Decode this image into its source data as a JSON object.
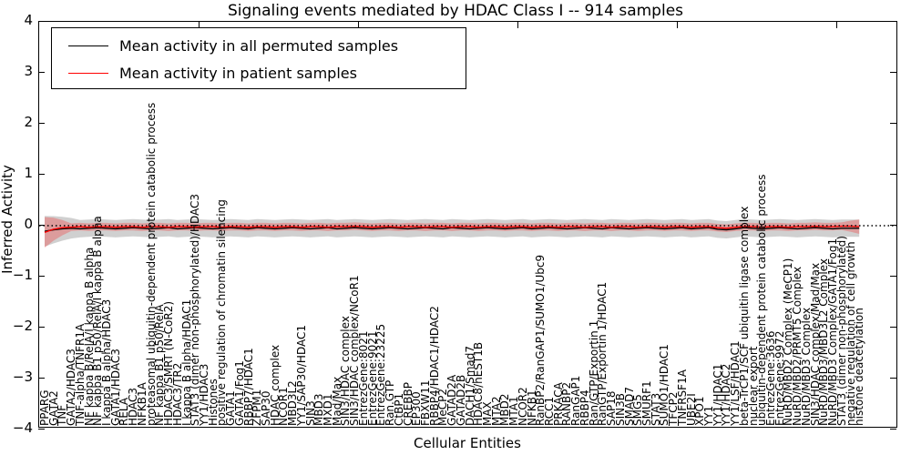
{
  "title": "Signaling events mediated by HDAC Class I -- 914 samples",
  "axes": {
    "ylabel": "Inferred Activity",
    "xlabel": "Cellular Entities",
    "yticks": [
      "4",
      "3",
      "2",
      "1",
      "0",
      "−1",
      "−2",
      "−3",
      "−4"
    ],
    "ytick_values": [
      4,
      3,
      2,
      1,
      0,
      -1,
      -2,
      -3,
      -4
    ],
    "top_tick_x": [
      176,
      351,
      526,
      701,
      876
    ]
  },
  "legend": {
    "items": [
      {
        "label": "Mean activity in all permuted samples",
        "color": "#000000"
      },
      {
        "label": "Mean activity in patient samples",
        "color": "#ff0000"
      }
    ]
  },
  "colors": {
    "permuted_line": "#000000",
    "patient_line": "#ff0000",
    "permuted_band": "rgba(120,120,120,0.35)",
    "patient_band": "rgba(255,0,0,0.25)",
    "zero_line": "#000000"
  },
  "chart_data": {
    "type": "line",
    "title": "Signaling events mediated by HDAC Class I -- 914 samples",
    "xlabel": "Cellular Entities",
    "ylabel": "Inferred Activity",
    "ylim": [
      -4,
      4
    ],
    "grid": false,
    "legend_position": "upper left",
    "categories": [
      "PPARG",
      "GATA2",
      "TNF",
      "GATA2/HDAC3",
      "TNF-alpha/TNFR1A",
      "NF kappa B/RelA/I kappa B alpha",
      "NF kappa B1 p50/RelA/I kappa B alpha",
      "I kappa B alpha/HDAC3",
      "GATA1/HDAC3",
      "RELA",
      "HDAC3",
      "NFKB1A",
      "proteasomal ubiquitin-dependent protein catabolic process",
      "NF kappa B1 p50/RelA",
      "HDAC3/SMRT (N-CoR2)",
      "HDAC3/TR2",
      "I kappa B alpha/HDAC1",
      "STAT3 (dimer non-phosphorylated)/HDAC3",
      "YY1/HDAC3",
      "Histones",
      "positive regulation of chromatin silencing",
      "GATA1",
      "GATA1/Fog1",
      "RBBP7/HDAC1",
      "ZFPM1",
      "SAP30",
      "HDAC complex",
      "NCOR1",
      "MBD3L2",
      "YY1/SAP30/HDAC1",
      "SIN3",
      "MBD3",
      "MXD1",
      "Mad/Max",
      "SIN3/HDAC complex",
      "SIN3/HDAC complex/NCoR1",
      "EntrezGene:8021",
      "EntrezGene:9021",
      "EntrezGene:23225",
      "Ran.GTP",
      "CtBP1",
      "CREBBP",
      "EP300",
      "FBXW11",
      "RBBP4/HDAC1/HDAC2",
      "MeCP2",
      "GATAD2A",
      "GATAD2B",
      "DACH1/Smad7",
      "HDAC8/hEST1B",
      "MAX",
      "MTA2",
      "MBD2",
      "MTA1",
      "NCOR2",
      "NFKB1",
      "RanBP2/RanGAP1/SUMO1/Ubc9",
      "RCC1",
      "PRKACA",
      "RANBP2",
      "RanGAP1",
      "RBBP4",
      "Ran/GTP/Exportin 1",
      "RanGTP/Exportin 1/HDAC1",
      "SAP18",
      "SIN3B",
      "SMAD7",
      "SMG5",
      "SMURF1",
      "STAT3",
      "SUMO1/HDAC1",
      "TFCP2",
      "TNFRSF1A",
      "UBE2I",
      "XPO1",
      "YY1",
      "YY1/HDAC1",
      "YY1/HDAC2",
      "YY1/LSF/HDAC1",
      "beta-TrCP1/SCF ubiquitin ligase complex",
      "nuclear export",
      "ubiquitin-dependent protein catabolic process",
      "EntrezGene:3636",
      "EntrezGene:9972",
      "NuRD/MBD2 Complex (MeCP1)",
      "NuRD/MBD2/PRMT5 Complex",
      "NuRD/MBD3 Complex",
      "SIN3/HDAC complex/Mad/Max",
      "NuRD/MBD3/MBD3L2 Complex",
      "NuRD/MBD3 Complex/GATA1/Fog1",
      "STAT3 (dimer non-phosphorylated)",
      "negative regulation of cell growth",
      "histone deacetylation"
    ],
    "series": [
      {
        "name": "Mean activity in all permuted samples",
        "values": [
          -0.11,
          -0.08,
          -0.06,
          -0.05,
          -0.06,
          -0.05,
          -0.04,
          -0.05,
          -0.06,
          -0.05,
          -0.04,
          -0.05,
          -0.06,
          -0.05,
          -0.04,
          -0.06,
          -0.05,
          -0.04,
          -0.05,
          -0.06,
          -0.05,
          -0.04,
          -0.05,
          -0.06,
          -0.04,
          -0.05,
          -0.06,
          -0.05,
          -0.04,
          -0.05,
          -0.06,
          -0.05,
          -0.04,
          -0.06,
          -0.05,
          -0.04,
          -0.05,
          -0.06,
          -0.05,
          -0.04,
          -0.05,
          -0.06,
          -0.05,
          -0.04,
          -0.05,
          -0.06,
          -0.04,
          -0.05,
          -0.06,
          -0.05,
          -0.04,
          -0.05,
          -0.06,
          -0.05,
          -0.04,
          -0.06,
          -0.05,
          -0.04,
          -0.05,
          -0.06,
          -0.05,
          -0.04,
          -0.05,
          -0.06,
          -0.04,
          -0.05,
          -0.06,
          -0.05,
          -0.04,
          -0.05,
          -0.06,
          -0.05,
          -0.04,
          -0.06,
          -0.05,
          -0.04,
          -0.07,
          -0.08,
          -0.06,
          -0.04,
          -0.05,
          -0.06,
          -0.05,
          -0.04,
          -0.05,
          -0.06,
          -0.05,
          -0.04,
          -0.05,
          -0.06,
          -0.05,
          -0.05,
          -0.05
        ],
        "band_halfwidth": {
          "base": 0.17,
          "start": 0.3,
          "taper": 4,
          "end": 0.17,
          "end_taper": 0
        }
      },
      {
        "name": "Mean activity in patient samples",
        "values": [
          -0.13,
          -0.07,
          -0.04,
          -0.03,
          -0.02,
          -0.03,
          -0.02,
          -0.02,
          -0.03,
          -0.02,
          -0.02,
          -0.03,
          -0.02,
          -0.02,
          -0.03,
          -0.02,
          -0.02,
          -0.03,
          -0.02,
          -0.02,
          -0.03,
          -0.02,
          -0.02,
          -0.03,
          -0.02,
          -0.02,
          -0.03,
          -0.02,
          -0.02,
          -0.03,
          -0.02,
          -0.02,
          -0.03,
          -0.02,
          -0.02,
          -0.01,
          -0.02,
          -0.03,
          -0.02,
          -0.02,
          -0.03,
          -0.02,
          -0.02,
          -0.03,
          -0.02,
          -0.02,
          -0.03,
          -0.02,
          -0.02,
          -0.03,
          -0.02,
          -0.02,
          -0.03,
          -0.02,
          -0.02,
          -0.03,
          -0.02,
          -0.02,
          -0.03,
          -0.02,
          -0.02,
          -0.03,
          -0.02,
          -0.02,
          -0.03,
          -0.02,
          -0.02,
          -0.03,
          -0.02,
          -0.02,
          -0.03,
          -0.02,
          -0.02,
          -0.03,
          -0.02,
          -0.02,
          -0.04,
          -0.05,
          -0.03,
          -0.02,
          -0.02,
          -0.03,
          -0.02,
          -0.02,
          -0.03,
          -0.02,
          -0.02,
          -0.01,
          -0.02,
          -0.02,
          -0.01,
          -0.01,
          -0.02
        ],
        "band_halfwidth": {
          "base": 0.075,
          "start": 0.3,
          "taper": 3,
          "end": 0.14,
          "end_taper": 2
        }
      }
    ],
    "zero_reference_line": {
      "y": 0,
      "style": "dotted"
    }
  }
}
